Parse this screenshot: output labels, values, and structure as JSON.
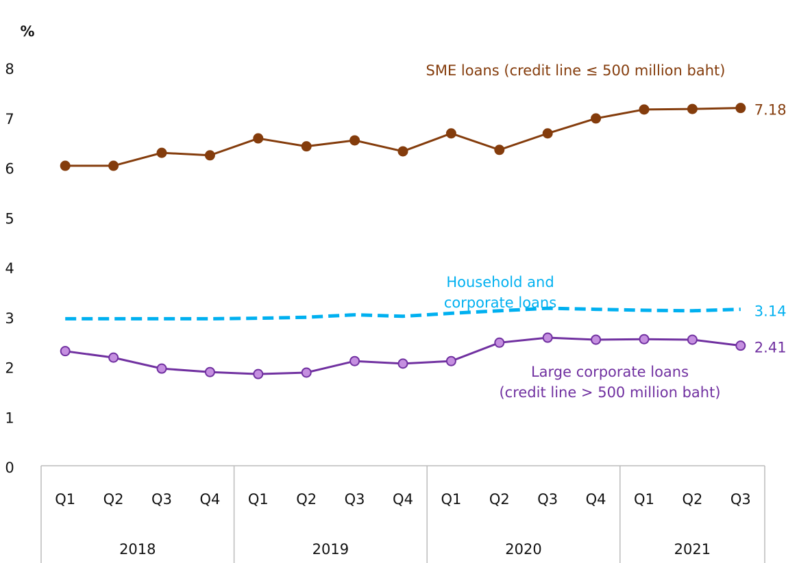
{
  "chart_data": {
    "type": "line",
    "y_label": "%",
    "categories": [
      "Q1",
      "Q2",
      "Q3",
      "Q4",
      "Q1",
      "Q2",
      "Q3",
      "Q4",
      "Q1",
      "Q2",
      "Q3",
      "Q4",
      "Q1",
      "Q2",
      "Q3"
    ],
    "groups": [
      {
        "label": "2018",
        "count": 4
      },
      {
        "label": "2019",
        "count": 4
      },
      {
        "label": "2020",
        "count": 4
      },
      {
        "label": "2021",
        "count": 3
      }
    ],
    "ylim": [
      0,
      8
    ],
    "yticks": [
      0,
      1,
      2,
      3,
      4,
      5,
      6,
      7,
      8
    ],
    "series": [
      {
        "name": "SME loans (credit line ≤ 500 million baht)",
        "color": "#843c0c",
        "marker_fill": "#843c0c",
        "dashed": false,
        "markers": true,
        "values": [
          6.02,
          6.02,
          6.28,
          6.23,
          6.57,
          6.41,
          6.53,
          6.31,
          6.67,
          6.34,
          6.67,
          6.97,
          7.15,
          7.16,
          7.18
        ]
      },
      {
        "name": "Household and corporate loans",
        "color": "#00b0f0",
        "dashed": true,
        "markers": false,
        "values": [
          2.95,
          2.95,
          2.95,
          2.95,
          2.96,
          2.98,
          3.03,
          3.0,
          3.06,
          3.11,
          3.16,
          3.14,
          3.12,
          3.11,
          3.14
        ]
      },
      {
        "name": "Large corporate loans\n(credit line > 500 million baht)",
        "color": "#7030a0",
        "marker_fill": "#c58fe0",
        "dashed": false,
        "markers": true,
        "values": [
          2.3,
          2.17,
          1.95,
          1.88,
          1.84,
          1.87,
          2.1,
          2.05,
          2.1,
          2.47,
          2.57,
          2.53,
          2.54,
          2.53,
          2.41
        ]
      }
    ]
  }
}
